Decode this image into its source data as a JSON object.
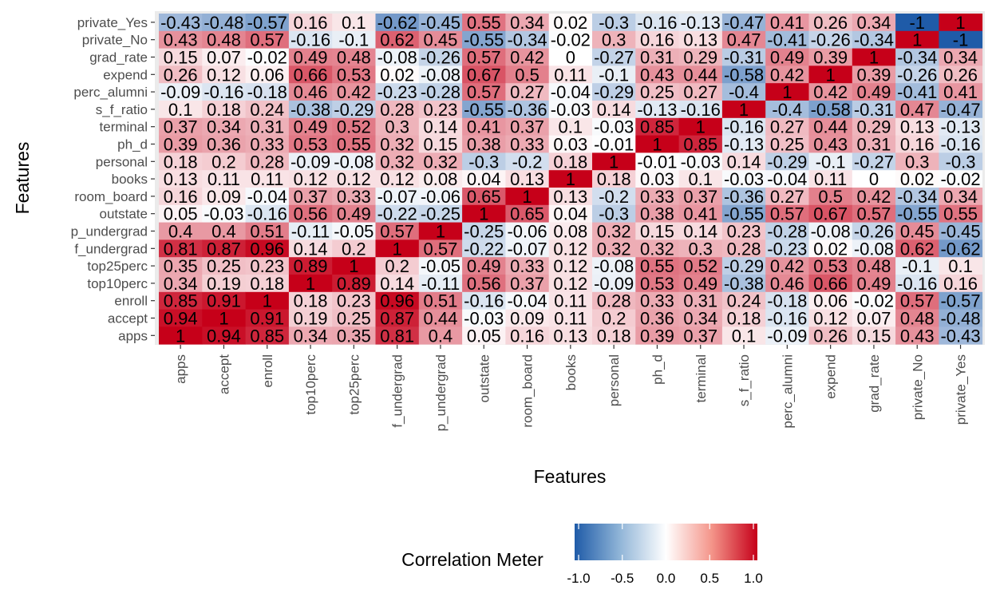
{
  "chart_data": {
    "type": "heatmap",
    "xlabel": "Features",
    "ylabel": "Features",
    "x_categories": [
      "apps",
      "accept",
      "enroll",
      "top10perc",
      "top25perc",
      "f_undergrad",
      "p_undergrad",
      "outstate",
      "room_board",
      "books",
      "personal",
      "ph_d",
      "terminal",
      "s_f_ratio",
      "perc_alumni",
      "expend",
      "grad_rate",
      "private_No",
      "private_Yes"
    ],
    "y_categories_top_to_bottom": [
      "private_Yes",
      "private_No",
      "grad_rate",
      "expend",
      "perc_alumni",
      "s_f_ratio",
      "terminal",
      "ph_d",
      "personal",
      "books",
      "room_board",
      "outstate",
      "p_undergrad",
      "f_undergrad",
      "top25perc",
      "top10perc",
      "enroll",
      "accept",
      "apps"
    ],
    "values": [
      [
        -0.43,
        -0.48,
        -0.57,
        0.16,
        0.1,
        -0.62,
        -0.45,
        0.55,
        0.34,
        0.02,
        -0.3,
        -0.16,
        -0.13,
        -0.47,
        0.41,
        0.26,
        0.34,
        -1,
        1
      ],
      [
        0.43,
        0.48,
        0.57,
        -0.16,
        -0.1,
        0.62,
        0.45,
        -0.55,
        -0.34,
        -0.02,
        0.3,
        0.16,
        0.13,
        0.47,
        -0.41,
        -0.26,
        -0.34,
        1,
        -1
      ],
      [
        0.15,
        0.07,
        -0.02,
        0.49,
        0.48,
        -0.08,
        -0.26,
        0.57,
        0.42,
        0,
        -0.27,
        0.31,
        0.29,
        -0.31,
        0.49,
        0.39,
        1,
        -0.34,
        0.34
      ],
      [
        0.26,
        0.12,
        0.06,
        0.66,
        0.53,
        0.02,
        -0.08,
        0.67,
        0.5,
        0.11,
        -0.1,
        0.43,
        0.44,
        -0.58,
        0.42,
        1,
        0.39,
        -0.26,
        0.26
      ],
      [
        -0.09,
        -0.16,
        -0.18,
        0.46,
        0.42,
        -0.23,
        -0.28,
        0.57,
        0.27,
        -0.04,
        -0.29,
        0.25,
        0.27,
        -0.4,
        1,
        0.42,
        0.49,
        -0.41,
        0.41
      ],
      [
        0.1,
        0.18,
        0.24,
        -0.38,
        -0.29,
        0.28,
        0.23,
        -0.55,
        -0.36,
        -0.03,
        0.14,
        -0.13,
        -0.16,
        1,
        -0.4,
        -0.58,
        -0.31,
        0.47,
        -0.47
      ],
      [
        0.37,
        0.34,
        0.31,
        0.49,
        0.52,
        0.3,
        0.14,
        0.41,
        0.37,
        0.1,
        -0.03,
        0.85,
        1,
        -0.16,
        0.27,
        0.44,
        0.29,
        0.13,
        -0.13
      ],
      [
        0.39,
        0.36,
        0.33,
        0.53,
        0.55,
        0.32,
        0.15,
        0.38,
        0.33,
        0.03,
        -0.01,
        1,
        0.85,
        -0.13,
        0.25,
        0.43,
        0.31,
        0.16,
        -0.16
      ],
      [
        0.18,
        0.2,
        0.28,
        -0.09,
        -0.08,
        0.32,
        0.32,
        -0.3,
        -0.2,
        0.18,
        1,
        -0.01,
        -0.03,
        0.14,
        -0.29,
        -0.1,
        -0.27,
        0.3,
        -0.3
      ],
      [
        0.13,
        0.11,
        0.11,
        0.12,
        0.12,
        0.12,
        0.08,
        0.04,
        0.13,
        1,
        0.18,
        0.03,
        0.1,
        -0.03,
        -0.04,
        0.11,
        0,
        0.02,
        -0.02
      ],
      [
        0.16,
        0.09,
        -0.04,
        0.37,
        0.33,
        -0.07,
        -0.06,
        0.65,
        1,
        0.13,
        -0.2,
        0.33,
        0.37,
        -0.36,
        0.27,
        0.5,
        0.42,
        -0.34,
        0.34
      ],
      [
        0.05,
        -0.03,
        -0.16,
        0.56,
        0.49,
        -0.22,
        -0.25,
        1,
        0.65,
        0.04,
        -0.3,
        0.38,
        0.41,
        -0.55,
        0.57,
        0.67,
        0.57,
        -0.55,
        0.55
      ],
      [
        0.4,
        0.4,
        0.51,
        -0.11,
        -0.05,
        0.57,
        1,
        -0.25,
        -0.06,
        0.08,
        0.32,
        0.15,
        0.14,
        0.23,
        -0.28,
        -0.08,
        -0.26,
        0.45,
        -0.45
      ],
      [
        0.81,
        0.87,
        0.96,
        0.14,
        0.2,
        1,
        0.57,
        -0.22,
        -0.07,
        0.12,
        0.32,
        0.32,
        0.3,
        0.28,
        -0.23,
        0.02,
        -0.08,
        0.62,
        -0.62
      ],
      [
        0.35,
        0.25,
        0.23,
        0.89,
        1,
        0.2,
        -0.05,
        0.49,
        0.33,
        0.12,
        -0.08,
        0.55,
        0.52,
        -0.29,
        0.42,
        0.53,
        0.48,
        -0.1,
        0.1
      ],
      [
        0.34,
        0.19,
        0.18,
        1,
        0.89,
        0.14,
        -0.11,
        0.56,
        0.37,
        0.12,
        -0.09,
        0.53,
        0.49,
        -0.38,
        0.46,
        0.66,
        0.49,
        -0.16,
        0.16
      ],
      [
        0.85,
        0.91,
        1,
        0.18,
        0.23,
        0.96,
        0.51,
        -0.16,
        -0.04,
        0.11,
        0.28,
        0.33,
        0.31,
        0.24,
        -0.18,
        0.06,
        -0.02,
        0.57,
        -0.57
      ],
      [
        0.94,
        1,
        0.91,
        0.19,
        0.25,
        0.87,
        0.44,
        -0.03,
        0.09,
        0.11,
        0.2,
        0.36,
        0.34,
        0.18,
        -0.16,
        0.12,
        0.07,
        0.48,
        -0.48
      ],
      [
        1,
        0.94,
        0.85,
        0.34,
        0.35,
        0.81,
        0.4,
        0.05,
        0.16,
        0.13,
        0.18,
        0.39,
        0.37,
        0.1,
        -0.09,
        0.26,
        0.15,
        0.43,
        -0.43
      ]
    ],
    "cell_labels": [
      [
        "-0.43",
        "-0.48",
        "-0.57",
        "0.16",
        "0.1",
        "-0.62",
        "-0.45",
        "0.55",
        "0.34",
        "0.02",
        "-0.3",
        "-0.16",
        "-0.13",
        "-0.47",
        "0.41",
        "0.26",
        "0.34",
        "-1",
        "1"
      ],
      [
        "0.43",
        "0.48",
        "0.57",
        "-0.16",
        "-0.1",
        "0.62",
        "0.45",
        "-0.55",
        "-0.34",
        "-0.02",
        "0.3",
        "0.16",
        "0.13",
        "0.47",
        "-0.41",
        "-0.26",
        "-0.34",
        "1",
        "-1"
      ],
      [
        "0.15",
        "0.07",
        "-0.02",
        "0.49",
        "0.48",
        "-0.08",
        "-0.26",
        "0.57",
        "0.42",
        "0",
        "-0.27",
        "0.31",
        "0.29",
        "-0.31",
        "0.49",
        "0.39",
        "1",
        "-0.34",
        "0.34"
      ],
      [
        "0.26",
        "0.12",
        "0.06",
        "0.66",
        "0.53",
        "0.02",
        "-0.08",
        "0.67",
        "0.5",
        "0.11",
        "-0.1",
        "0.43",
        "0.44",
        "-0.58",
        "0.42",
        "1",
        "0.39",
        "-0.26",
        "0.26"
      ],
      [
        "-0.09",
        "-0.16",
        "-0.18",
        "0.46",
        "0.42",
        "-0.23",
        "-0.28",
        "0.57",
        "0.27",
        "-0.04",
        "-0.29",
        "0.25",
        "0.27",
        "-0.4",
        "1",
        "0.42",
        "0.49",
        "-0.41",
        "0.41"
      ],
      [
        "0.1",
        "0.18",
        "0.24",
        "-0.38",
        "-0.29",
        "0.28",
        "0.23",
        "-0.55",
        "-0.36",
        "-0.03",
        "0.14",
        "-0.13",
        "-0.16",
        "1",
        "-0.4",
        "-0.58",
        "-0.31",
        "0.47",
        "-0.47"
      ],
      [
        "0.37",
        "0.34",
        "0.31",
        "0.49",
        "0.52",
        "0.3",
        "0.14",
        "0.41",
        "0.37",
        "0.1",
        "-0.03",
        "0.85",
        "1",
        "-0.16",
        "0.27",
        "0.44",
        "0.29",
        "0.13",
        "-0.13"
      ],
      [
        "0.39",
        "0.36",
        "0.33",
        "0.53",
        "0.55",
        "0.32",
        "0.15",
        "0.38",
        "0.33",
        "0.03",
        "-0.01",
        "1",
        "0.85",
        "-0.13",
        "0.25",
        "0.43",
        "0.31",
        "0.16",
        "-0.16"
      ],
      [
        "0.18",
        "0.2",
        "0.28",
        "-0.09",
        "-0.08",
        "0.32",
        "0.32",
        "-0.3",
        "-0.2",
        "0.18",
        "1",
        "-0.01",
        "-0.03",
        "0.14",
        "-0.29",
        "-0.1",
        "-0.27",
        "0.3",
        "-0.3"
      ],
      [
        "0.13",
        "0.11",
        "0.11",
        "0.12",
        "0.12",
        "0.12",
        "0.08",
        "0.04",
        "0.13",
        "1",
        "0.18",
        "0.03",
        "0.1",
        "-0.03",
        "-0.04",
        "0.11",
        "0",
        "0.02",
        "-0.02"
      ],
      [
        "0.16",
        "0.09",
        "-0.04",
        "0.37",
        "0.33",
        "-0.07",
        "-0.06",
        "0.65",
        "1",
        "0.13",
        "-0.2",
        "0.33",
        "0.37",
        "-0.36",
        "0.27",
        "0.5",
        "0.42",
        "-0.34",
        "0.34"
      ],
      [
        "0.05",
        "-0.03",
        "-0.16",
        "0.56",
        "0.49",
        "-0.22",
        "-0.25",
        "1",
        "0.65",
        "0.04",
        "-0.3",
        "0.38",
        "0.41",
        "-0.55",
        "0.57",
        "0.67",
        "0.57",
        "-0.55",
        "0.55"
      ],
      [
        "0.4",
        "0.4",
        "0.51",
        "-0.11",
        "-0.05",
        "0.57",
        "1",
        "-0.25",
        "-0.06",
        "0.08",
        "0.32",
        "0.15",
        "0.14",
        "0.23",
        "-0.28",
        "-0.08",
        "-0.26",
        "0.45",
        "-0.45"
      ],
      [
        "0.81",
        "0.87",
        "0.96",
        "0.14",
        "0.2",
        "1",
        "0.57",
        "-0.22",
        "-0.07",
        "0.12",
        "0.32",
        "0.32",
        "0.3",
        "0.28",
        "-0.23",
        "0.02",
        "-0.08",
        "0.62",
        "-0.62"
      ],
      [
        "0.35",
        "0.25",
        "0.23",
        "0.89",
        "1",
        "0.2",
        "-0.05",
        "0.49",
        "0.33",
        "0.12",
        "-0.08",
        "0.55",
        "0.52",
        "-0.29",
        "0.42",
        "0.53",
        "0.48",
        "-0.1",
        "0.1"
      ],
      [
        "0.34",
        "0.19",
        "0.18",
        "1",
        "0.89",
        "0.14",
        "-0.11",
        "0.56",
        "0.37",
        "0.12",
        "-0.09",
        "0.53",
        "0.49",
        "-0.38",
        "0.46",
        "0.66",
        "0.49",
        "-0.16",
        "0.16"
      ],
      [
        "0.85",
        "0.91",
        "1",
        "0.18",
        "0.23",
        "0.96",
        "0.51",
        "-0.16",
        "-0.04",
        "0.11",
        "0.28",
        "0.33",
        "0.31",
        "0.24",
        "-0.18",
        "0.06",
        "-0.02",
        "0.57",
        "-0.57"
      ],
      [
        "0.94",
        "1",
        "0.91",
        "0.19",
        "0.25",
        "0.87",
        "0.44",
        "-0.03",
        "0.09",
        "0.11",
        "0.2",
        "0.36",
        "0.34",
        "0.18",
        "-0.16",
        "0.12",
        "0.07",
        "0.48",
        "-0.48"
      ],
      [
        "1",
        "0.94",
        "0.85",
        "0.34",
        "0.35",
        "0.81",
        "0.4",
        "0.05",
        "0.16",
        "0.13",
        "0.18",
        "0.39",
        "0.37",
        "0.1",
        "-0.09",
        "0.26",
        "0.15",
        "0.43",
        "-0.43"
      ]
    ],
    "color_scale": {
      "low": "#1f5ba8",
      "mid": "#ffffff",
      "high": "#c60019",
      "domain": [
        -1,
        1
      ]
    },
    "legend": {
      "title": "Correlation Meter",
      "ticks": [
        "-1.0",
        "-0.5",
        "0.0",
        "0.5",
        "1.0"
      ],
      "tick_values": [
        -1,
        -0.5,
        0,
        0.5,
        1
      ],
      "placement": "bottom"
    }
  }
}
